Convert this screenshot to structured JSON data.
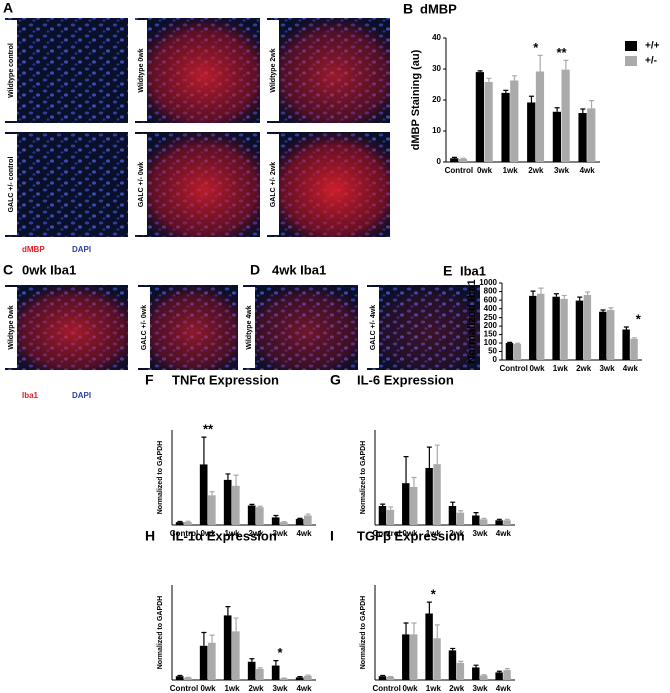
{
  "micrographs": [
    {
      "panel": "A",
      "images": [
        "Wildtype control",
        "Wildtype 0wk",
        "Wildtype 2wk",
        "GALC +/- control",
        "GALC +/- 0wk",
        "GALC +/- 2wk"
      ],
      "legend": [
        "dMBP",
        "DAPI"
      ]
    },
    {
      "panel": "C",
      "title": "0wk Iba1",
      "images": [
        "Wildtype 0wk",
        "GALC +/- 0wk"
      ],
      "legend": [
        "Iba1",
        "DAPI"
      ]
    },
    {
      "panel": "D",
      "title": "4wk Iba1",
      "images": [
        "Wildtype 4wk",
        "GALC +/- 4wk"
      ]
    }
  ],
  "chart_data": [
    {
      "type": "bar",
      "panel": "B",
      "title": "dMBP",
      "y_label": "dMBP Staining (au)",
      "categories": [
        "Control",
        "0wk",
        "1wk",
        "2wk",
        "3wk",
        "4wk"
      ],
      "series": [
        {
          "name": "+/+",
          "color": "#000000",
          "values": [
            1.2,
            29,
            22.3,
            19.2,
            16.2,
            15.8
          ],
          "errors": [
            0.3,
            0.4,
            0.8,
            2,
            1.3,
            1.3
          ]
        },
        {
          "name": "+/-",
          "color": "#aaaaaa",
          "values": [
            1,
            25.8,
            26.3,
            29.2,
            29.8,
            17.3
          ],
          "errors": [
            0.2,
            1.2,
            1.5,
            5.2,
            3,
            2.5
          ]
        }
      ],
      "ylim": [
        0,
        40
      ],
      "yticks": [
        0,
        10,
        20,
        30,
        40
      ],
      "annotations": [
        {
          "text": "*",
          "category": "2wk"
        },
        {
          "text": "**",
          "category": "3wk"
        }
      ]
    },
    {
      "type": "bar",
      "panel": "E",
      "title": "Iba1",
      "y_label": "Normalized Iba1",
      "categories": [
        "Control",
        "0wk",
        "1wk",
        "2wk",
        "3wk",
        "4wk"
      ],
      "series": [
        {
          "color": "#000000",
          "values": [
            100,
            700,
            680,
            590,
            330,
            180
          ],
          "errors": [
            4,
            110,
            70,
            80,
            40,
            15
          ]
        },
        {
          "color": "#aaaaaa",
          "values": [
            95,
            750,
            630,
            720,
            370,
            125
          ],
          "errors": [
            4,
            130,
            80,
            70,
            50,
            6
          ]
        }
      ],
      "ylim": [
        0,
        1000
      ],
      "ybreak": [
        250,
        300
      ],
      "yticks": [
        0,
        50,
        100,
        150,
        200,
        250,
        400,
        600,
        800,
        1000
      ],
      "annotations": [
        {
          "text": "*",
          "category": "4wk"
        }
      ]
    },
    {
      "type": "bar",
      "panel": "F",
      "title": "TNFα Expression",
      "y_label": "Normalized to GAPDH",
      "categories": [
        "Control",
        "0wk",
        "1wk",
        "2wk",
        "3wk",
        "4wk"
      ],
      "series": [
        {
          "color": "#000000",
          "values": [
            1.2,
            25.5,
            19,
            8.2,
            3.2,
            2.5
          ],
          "errors": [
            0.3,
            11.5,
            2.5,
            0.5,
            0.8,
            0.3
          ]
        },
        {
          "color": "#aaaaaa",
          "values": [
            1.3,
            12.5,
            16.5,
            7.5,
            1.2,
            4
          ],
          "errors": [
            0.3,
            1.5,
            4.5,
            0.4,
            0.2,
            0.6
          ]
        }
      ],
      "ylim": [
        0,
        40
      ],
      "annotations": [
        {
          "text": "**",
          "category": "0wk"
        }
      ]
    },
    {
      "type": "bar",
      "panel": "G",
      "title": "IL-6 Expression",
      "y_label": "Normalized to GAPDH",
      "categories": [
        "Control",
        "0wk",
        "1wk",
        "2wk",
        "3wk",
        "4wk"
      ],
      "series": [
        {
          "color": "#000000",
          "values": [
            1,
            2.2,
            3,
            1,
            0.5,
            0.25
          ],
          "errors": [
            0.1,
            1.4,
            1.1,
            0.2,
            0.15,
            0.05
          ]
        },
        {
          "color": "#aaaaaa",
          "values": [
            0.8,
            2,
            3.2,
            0.65,
            0.3,
            0.25
          ],
          "errors": [
            0.15,
            0.5,
            1,
            0.1,
            0.05,
            0.05
          ]
        }
      ],
      "ylim": [
        0,
        5
      ]
    },
    {
      "type": "bar",
      "panel": "H",
      "title": "IL-1α Expression",
      "y_label": "Normalized to GAPDH",
      "categories": [
        "Control",
        "0wk",
        "1wk",
        "2wk",
        "3wk",
        "4wk"
      ],
      "series": [
        {
          "color": "#000000",
          "values": [
            1,
            9,
            17,
            4.8,
            3.8,
            0.7
          ],
          "errors": [
            0.2,
            3.5,
            2.3,
            0.8,
            1.3,
            0.2
          ]
        },
        {
          "color": "#aaaaaa",
          "values": [
            0.6,
            9.8,
            12.8,
            2.9,
            0.4,
            1.1
          ],
          "errors": [
            0.1,
            2,
            3.5,
            0.3,
            0.1,
            0.2
          ]
        }
      ],
      "ylim": [
        0,
        25
      ],
      "annotations": [
        {
          "text": "*",
          "category": "3wk"
        }
      ]
    },
    {
      "type": "bar",
      "panel": "I",
      "title": "TGFβ Expression",
      "y_label": "Normalized to GAPDH",
      "categories": [
        "Control",
        "0wk",
        "1wk",
        "2wk",
        "3wk",
        "4wk"
      ],
      "series": [
        {
          "color": "#000000",
          "values": [
            1,
            12,
            17.5,
            7.8,
            3.3,
            2
          ],
          "errors": [
            0.2,
            3,
            3,
            0.5,
            0.6,
            0.3
          ]
        },
        {
          "color": "#aaaaaa",
          "values": [
            0.8,
            12,
            11,
            4.5,
            1.2,
            2.6
          ],
          "errors": [
            0.1,
            3,
            3.5,
            0.4,
            0.2,
            0.4
          ]
        }
      ],
      "ylim": [
        0,
        25
      ],
      "annotations": [
        {
          "text": "*",
          "category": "1wk"
        }
      ]
    }
  ]
}
